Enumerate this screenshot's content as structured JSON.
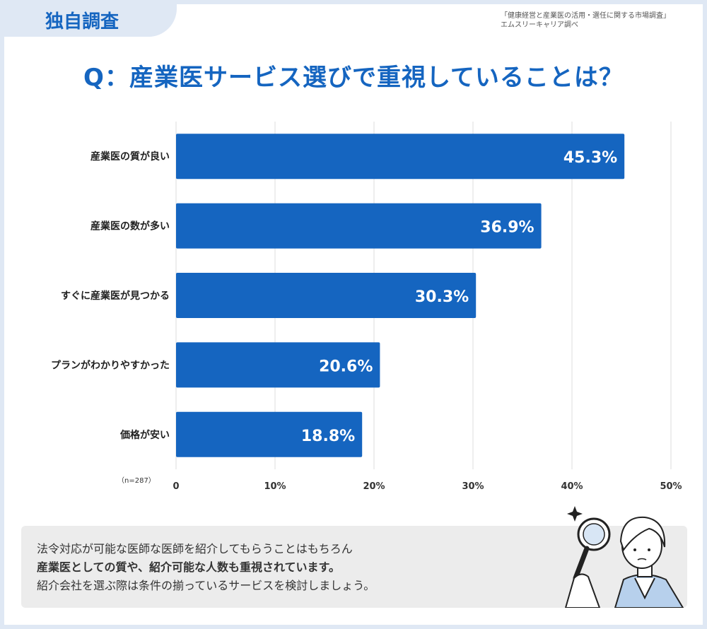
{
  "badge": {
    "label": "独自調査"
  },
  "source": {
    "line1": "「健康経営と産業医の活用・選任に関する市場調査」",
    "line2": "エムスリーキャリア調べ"
  },
  "question": "Q：産業医サービス選びで重視していることは？",
  "sample_size": "（n=287）",
  "note": {
    "line1": "法令対応が可能な医師な医師を紹介してもらうことはもちろん",
    "line2": "産業医としての質や、紹介可能な人数も重視されています。",
    "line3": "紹介会社を選ぶ際は条件の揃っているサービスを検討しましょう。"
  },
  "colors": {
    "bar": "#1565c0",
    "accent": "#1565c0",
    "background": "#dfe8f4"
  },
  "illustration": {
    "icon": "person-with-magnifying-glass-icon"
  },
  "chart_data": {
    "type": "bar",
    "orientation": "horizontal",
    "categories": [
      "産業医の質が良い",
      "産業医の数が多い",
      "すぐに産業医が見つかる",
      "プランがわかりやすかった",
      "価格が安い"
    ],
    "values": [
      45.3,
      36.9,
      30.3,
      20.6,
      18.8
    ],
    "value_labels": [
      "45.3%",
      "36.9%",
      "30.3%",
      "20.6%",
      "18.8%"
    ],
    "x_ticks": [
      "0",
      "10%",
      "20%",
      "30%",
      "40%",
      "50%"
    ],
    "xlim": [
      0,
      50
    ],
    "grid": true
  }
}
